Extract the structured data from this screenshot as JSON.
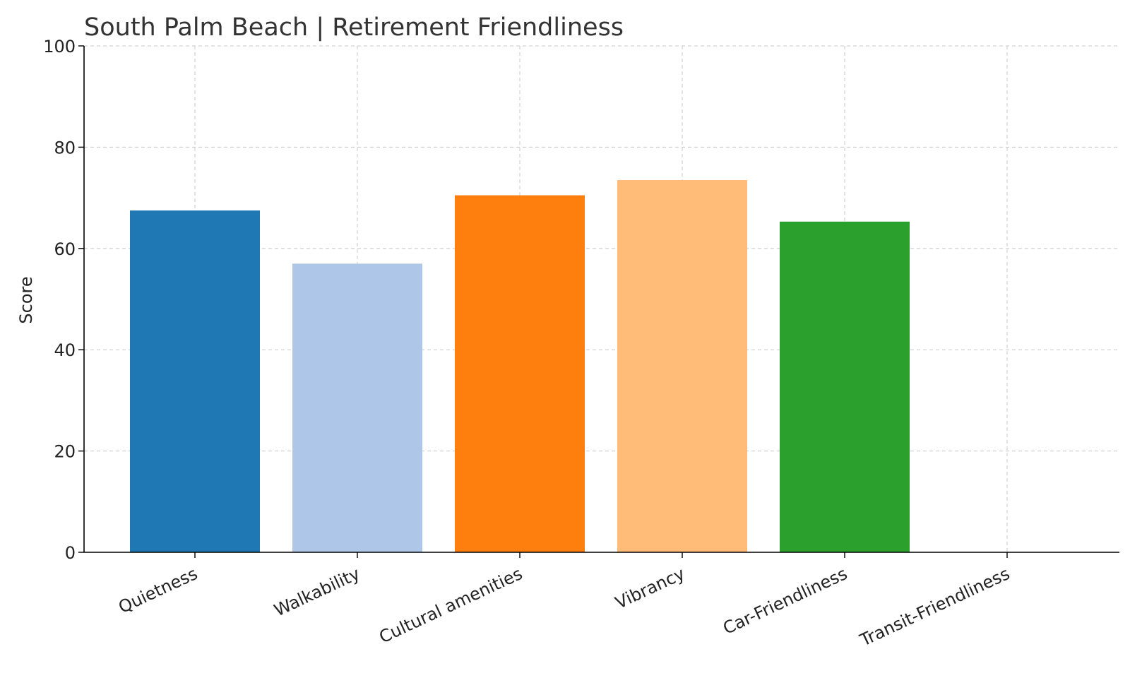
{
  "chart_data": {
    "type": "bar",
    "title": "South Palm Beach | Retirement Friendliness",
    "xlabel": "",
    "ylabel": "Score",
    "ylim": [
      0,
      100
    ],
    "yticks": [
      0,
      20,
      40,
      60,
      80,
      100
    ],
    "grid": true,
    "categories": [
      "Quietness",
      "Walkability",
      "Cultural amenities",
      "Vibrancy",
      "Car-Friendliness",
      "Transit-Friendliness"
    ],
    "values": [
      67.5,
      57,
      70.5,
      73.5,
      65.3,
      0
    ],
    "colors": [
      "#1f77b4",
      "#aec7e8",
      "#ff7f0e",
      "#ffbb78",
      "#2ca02c",
      "#98df8a"
    ]
  }
}
